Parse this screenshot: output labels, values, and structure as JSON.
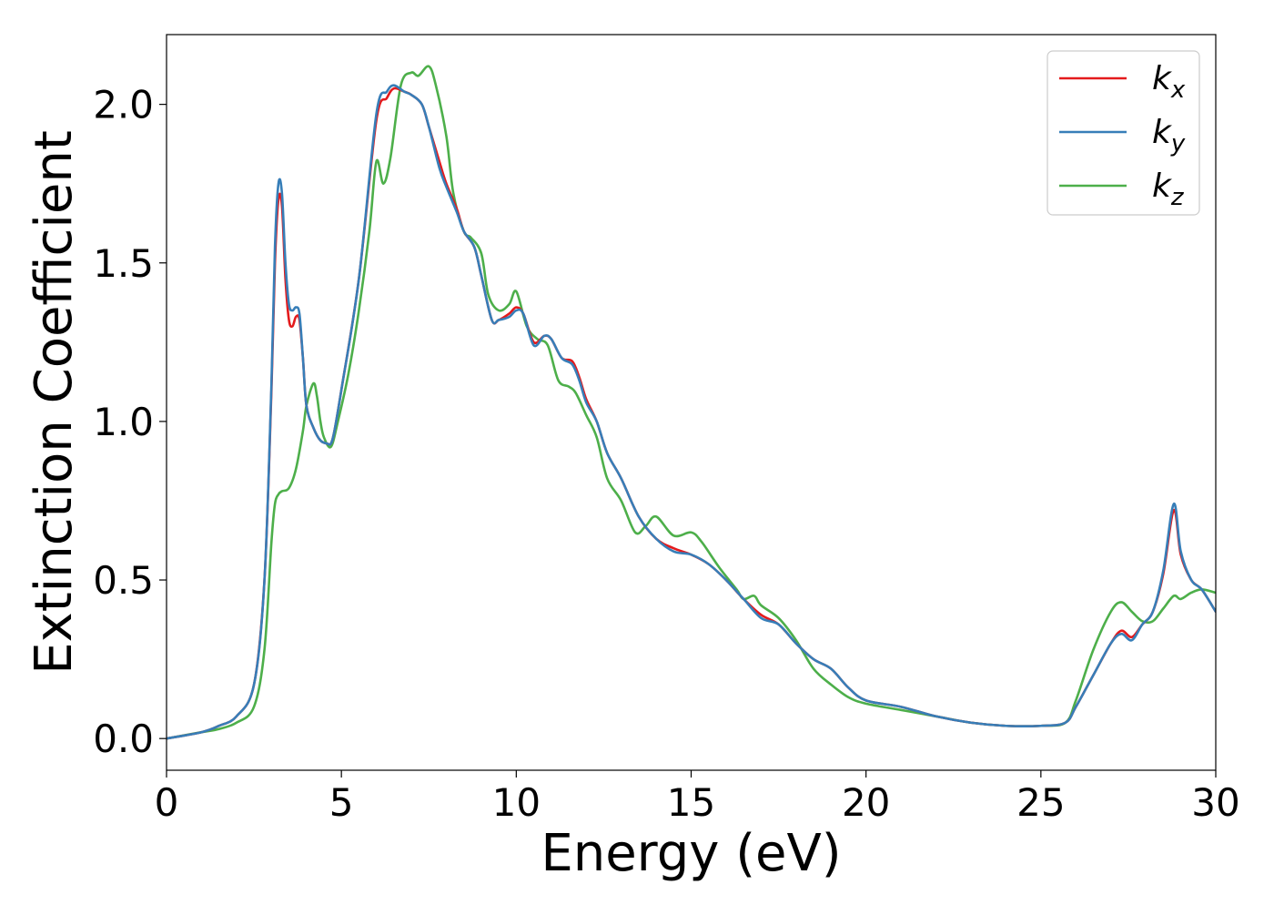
{
  "chart_data": {
    "type": "line",
    "title": "",
    "xlabel": "Energy (eV)",
    "ylabel": "Extinction Coefficient",
    "xlim": [
      0,
      30
    ],
    "ylim": [
      -0.1,
      2.22
    ],
    "xticks": [
      0,
      5,
      10,
      15,
      20,
      25,
      30
    ],
    "xtick_labels": [
      "0",
      "5",
      "10",
      "15",
      "20",
      "25",
      "30"
    ],
    "yticks": [
      0.0,
      0.5,
      1.0,
      1.5,
      2.0
    ],
    "ytick_labels": [
      "0.0",
      "0.5",
      "1.0",
      "1.5",
      "2.0"
    ],
    "grid": false,
    "legend_position": "top-right",
    "series": [
      {
        "name": "k_x",
        "legend_base": "k",
        "legend_sub": "x",
        "color": "#e41a1c",
        "x": [
          0,
          1,
          1.5,
          2,
          2.5,
          2.8,
          3.0,
          3.1,
          3.2,
          3.3,
          3.4,
          3.5,
          3.6,
          3.7,
          3.8,
          3.9,
          4.0,
          4.2,
          4.4,
          4.6,
          4.7,
          4.8,
          5.0,
          5.5,
          6.0,
          6.3,
          6.5,
          6.8,
          7.0,
          7.3,
          7.5,
          7.8,
          8.0,
          8.3,
          8.5,
          8.8,
          9.0,
          9.3,
          9.5,
          9.8,
          10.0,
          10.2,
          10.5,
          10.8,
          11.0,
          11.3,
          11.6,
          11.8,
          12.0,
          12.3,
          12.6,
          13.0,
          13.5,
          14.0,
          14.5,
          15.0,
          15.5,
          16.0,
          16.5,
          17.0,
          17.5,
          18.0,
          18.5,
          19.0,
          19.5,
          20.0,
          21.0,
          22.0,
          23.0,
          24.0,
          25.0,
          25.7,
          26.0,
          26.5,
          27.0,
          27.3,
          27.6,
          27.9,
          28.2,
          28.5,
          28.8,
          29.0,
          29.3,
          29.6,
          30.0
        ],
        "y": [
          0.0,
          0.02,
          0.04,
          0.07,
          0.17,
          0.5,
          1.1,
          1.5,
          1.7,
          1.68,
          1.45,
          1.32,
          1.3,
          1.33,
          1.32,
          1.2,
          1.05,
          0.98,
          0.94,
          0.93,
          0.93,
          0.97,
          1.1,
          1.45,
          1.95,
          2.02,
          2.05,
          2.04,
          2.03,
          2.0,
          1.93,
          1.82,
          1.75,
          1.67,
          1.6,
          1.55,
          1.46,
          1.32,
          1.32,
          1.34,
          1.36,
          1.34,
          1.25,
          1.27,
          1.26,
          1.2,
          1.19,
          1.14,
          1.07,
          1.0,
          0.9,
          0.82,
          0.7,
          0.63,
          0.6,
          0.58,
          0.55,
          0.5,
          0.44,
          0.39,
          0.36,
          0.3,
          0.25,
          0.22,
          0.16,
          0.12,
          0.1,
          0.07,
          0.05,
          0.04,
          0.04,
          0.05,
          0.1,
          0.2,
          0.3,
          0.34,
          0.32,
          0.36,
          0.4,
          0.52,
          0.72,
          0.58,
          0.5,
          0.47,
          0.4
        ]
      },
      {
        "name": "k_y",
        "legend_base": "k",
        "legend_sub": "y",
        "color": "#377eb8",
        "x": [
          0,
          1,
          1.5,
          2,
          2.5,
          2.8,
          3.0,
          3.1,
          3.2,
          3.3,
          3.4,
          3.5,
          3.6,
          3.7,
          3.8,
          3.9,
          4.0,
          4.2,
          4.4,
          4.6,
          4.7,
          4.8,
          5.0,
          5.5,
          6.0,
          6.3,
          6.5,
          6.8,
          7.0,
          7.3,
          7.5,
          7.8,
          8.0,
          8.3,
          8.5,
          8.8,
          9.0,
          9.3,
          9.5,
          9.8,
          10.0,
          10.2,
          10.5,
          10.8,
          11.0,
          11.3,
          11.6,
          11.8,
          12.0,
          12.3,
          12.6,
          13.0,
          13.5,
          14.0,
          14.5,
          15.0,
          15.5,
          16.0,
          16.5,
          17.0,
          17.5,
          18.0,
          18.5,
          19.0,
          19.5,
          20.0,
          21.0,
          22.0,
          23.0,
          24.0,
          25.0,
          25.7,
          26.0,
          26.5,
          27.0,
          27.3,
          27.6,
          27.9,
          28.2,
          28.5,
          28.8,
          29.0,
          29.3,
          29.6,
          30.0
        ],
        "y": [
          0.0,
          0.02,
          0.04,
          0.07,
          0.17,
          0.5,
          1.12,
          1.55,
          1.75,
          1.72,
          1.5,
          1.37,
          1.35,
          1.36,
          1.34,
          1.2,
          1.05,
          0.98,
          0.94,
          0.93,
          0.93,
          0.97,
          1.1,
          1.45,
          1.97,
          2.04,
          2.06,
          2.04,
          2.03,
          2.0,
          1.93,
          1.8,
          1.74,
          1.66,
          1.6,
          1.55,
          1.46,
          1.32,
          1.32,
          1.33,
          1.35,
          1.34,
          1.24,
          1.27,
          1.26,
          1.2,
          1.18,
          1.13,
          1.06,
          1.0,
          0.9,
          0.82,
          0.7,
          0.63,
          0.59,
          0.58,
          0.55,
          0.5,
          0.44,
          0.38,
          0.36,
          0.3,
          0.25,
          0.22,
          0.16,
          0.12,
          0.1,
          0.07,
          0.05,
          0.04,
          0.04,
          0.05,
          0.1,
          0.2,
          0.3,
          0.33,
          0.31,
          0.36,
          0.4,
          0.53,
          0.74,
          0.59,
          0.5,
          0.47,
          0.4
        ]
      },
      {
        "name": "k_z",
        "legend_base": "k",
        "legend_sub": "z",
        "color": "#4daf4a",
        "x": [
          0,
          1,
          1.5,
          2,
          2.5,
          2.8,
          3.0,
          3.1,
          3.2,
          3.3,
          3.5,
          3.7,
          3.9,
          4.0,
          4.2,
          4.3,
          4.4,
          4.5,
          4.7,
          4.9,
          5.2,
          5.5,
          5.8,
          6.0,
          6.2,
          6.4,
          6.7,
          7.0,
          7.2,
          7.5,
          7.7,
          8.0,
          8.2,
          8.5,
          8.7,
          9.0,
          9.2,
          9.5,
          9.8,
          10.0,
          10.3,
          10.6,
          10.9,
          11.2,
          11.5,
          11.7,
          12.0,
          12.3,
          12.6,
          13.0,
          13.4,
          13.7,
          14.0,
          14.5,
          15.0,
          15.3,
          15.8,
          16.3,
          16.5,
          16.8,
          17.0,
          17.5,
          18.0,
          18.5,
          19.0,
          19.5,
          20.0,
          21.0,
          22.0,
          23.0,
          24.0,
          25.0,
          25.7,
          26.0,
          26.5,
          27.0,
          27.3,
          27.6,
          27.9,
          28.2,
          28.5,
          28.8,
          29.0,
          29.3,
          29.6,
          30.0
        ],
        "y": [
          0.0,
          0.02,
          0.03,
          0.05,
          0.1,
          0.28,
          0.62,
          0.74,
          0.77,
          0.78,
          0.79,
          0.85,
          0.97,
          1.05,
          1.12,
          1.08,
          1.0,
          0.95,
          0.92,
          1.0,
          1.15,
          1.35,
          1.6,
          1.82,
          1.75,
          1.83,
          2.06,
          2.1,
          2.09,
          2.12,
          2.06,
          1.9,
          1.72,
          1.6,
          1.58,
          1.53,
          1.4,
          1.35,
          1.37,
          1.41,
          1.3,
          1.26,
          1.24,
          1.13,
          1.11,
          1.09,
          1.02,
          0.95,
          0.82,
          0.75,
          0.65,
          0.67,
          0.7,
          0.64,
          0.65,
          0.62,
          0.54,
          0.47,
          0.44,
          0.45,
          0.42,
          0.38,
          0.31,
          0.22,
          0.17,
          0.13,
          0.11,
          0.09,
          0.07,
          0.05,
          0.04,
          0.04,
          0.05,
          0.12,
          0.28,
          0.4,
          0.43,
          0.4,
          0.37,
          0.37,
          0.41,
          0.45,
          0.44,
          0.46,
          0.47,
          0.46
        ]
      }
    ]
  }
}
